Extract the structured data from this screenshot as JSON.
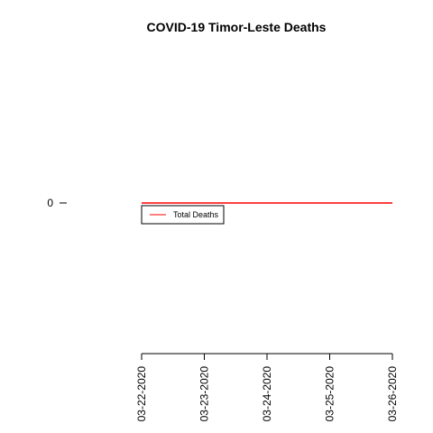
{
  "chart_data": {
    "type": "line",
    "title": "COVID-19 Timor-Leste Deaths",
    "xlabel": "",
    "ylabel": "",
    "categories": [
      "03-22-2020",
      "03-23-2020",
      "03-24-2020",
      "03-25-2020",
      "03-26-2020"
    ],
    "series": [
      {
        "name": "Total Deaths",
        "values": [
          0,
          0,
          0,
          0,
          0
        ],
        "color": "#ff0000"
      }
    ],
    "y_ticks": [
      0
    ],
    "ylim": [
      -1,
      1
    ],
    "grid": false,
    "legend_position": "top-left, just below the line"
  }
}
